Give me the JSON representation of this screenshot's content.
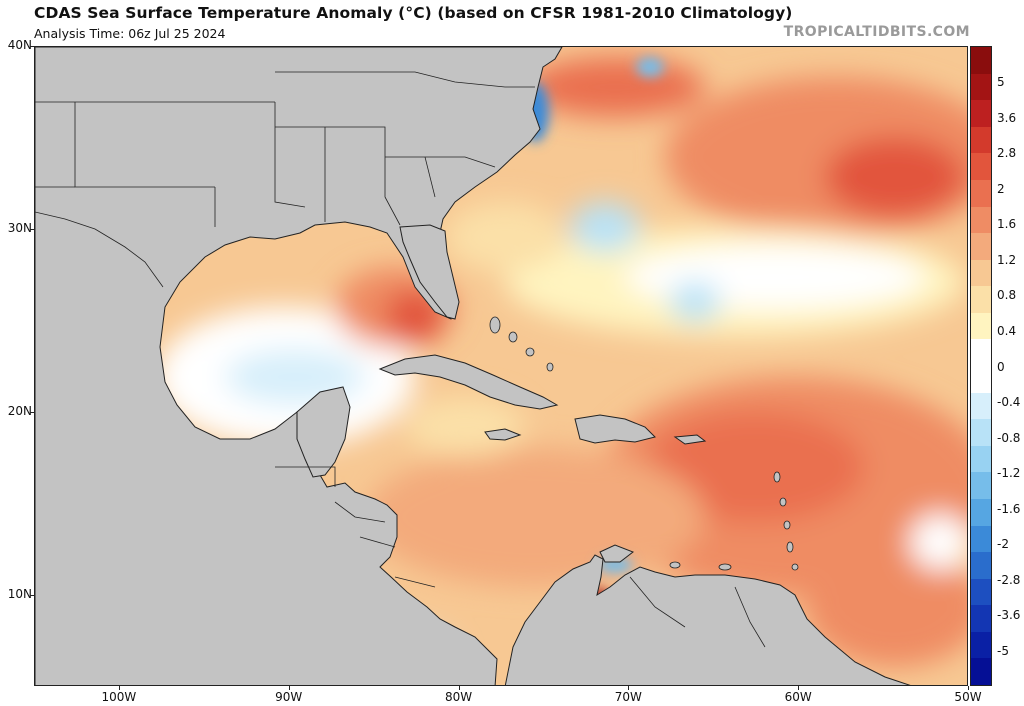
{
  "header": {
    "title": "CDAS Sea Surface Temperature Anomaly (°C) (based on CFSR 1981-2010 Climatology)",
    "subtitle": "Analysis Time: 06z Jul 25 2024",
    "credit": "TROPICALTIDBITS.COM"
  },
  "map": {
    "lat_labels": [
      "40N",
      "30N",
      "20N",
      "10N"
    ],
    "lon_labels": [
      "100W",
      "90W",
      "80W",
      "70W",
      "60W",
      "50W"
    ],
    "extent": {
      "lon_min": -105,
      "lon_max": -50,
      "lat_min": 5,
      "lat_max": 40
    },
    "land_color": "#c3c3c3",
    "border_color": "#222222"
  },
  "colorbar": {
    "labels": [
      "5",
      "3.6",
      "2.8",
      "2",
      "1.6",
      "1.2",
      "0.8",
      "0.4",
      "0",
      "-0.4",
      "-0.8",
      "-1.2",
      "-1.6",
      "-2",
      "-2.8",
      "-3.6",
      "-5"
    ],
    "colors": [
      "#8a0d0d",
      "#a31414",
      "#bd2020",
      "#d33a2c",
      "#e2553c",
      "#ea7050",
      "#ef8c64",
      "#f3aa7c",
      "#f7c893",
      "#fbe0a8",
      "#fff4c0",
      "#ffffff",
      "#ffffff",
      "#d7effb",
      "#b8e2f7",
      "#98d2f2",
      "#76bdea",
      "#56a6e2",
      "#3b8ad8",
      "#2a6dcc",
      "#1d4fc0",
      "#1336b3",
      "#0a20a5",
      "#050f95"
    ]
  }
}
